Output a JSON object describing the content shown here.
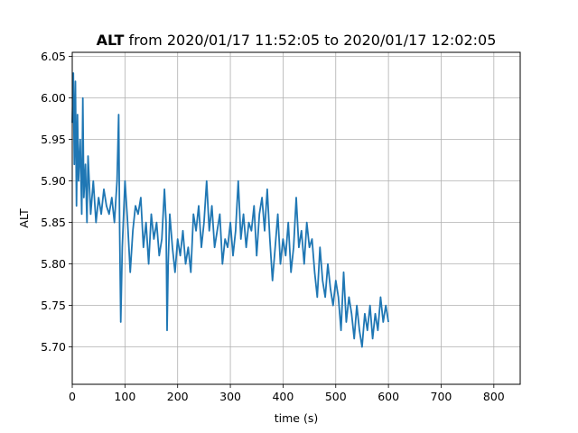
{
  "chart_data": {
    "type": "line",
    "title": {
      "bold": "ALT",
      "rest": " from 2020/01/17 11:52:05 to 2020/01/17 12:02:05"
    },
    "xlabel": "time (s)",
    "ylabel": "ALT",
    "xlim": [
      0,
      850
    ],
    "ylim": [
      5.655,
      6.055
    ],
    "xticks": [
      0,
      100,
      200,
      300,
      400,
      500,
      600,
      700,
      800
    ],
    "yticks": [
      5.7,
      5.75,
      5.8,
      5.85,
      5.9,
      5.95,
      6.0,
      6.05
    ],
    "ytick_labels": [
      "5.70",
      "5.75",
      "5.80",
      "5.85",
      "5.90",
      "5.95",
      "6.00",
      "6.05"
    ],
    "grid": true,
    "series": [
      {
        "color": "#1f77b4",
        "x": [
          0,
          2,
          4,
          6,
          8,
          10,
          12,
          15,
          18,
          20,
          22,
          25,
          28,
          30,
          35,
          40,
          45,
          50,
          55,
          60,
          65,
          70,
          75,
          80,
          85,
          88,
          90,
          92,
          95,
          100,
          105,
          110,
          115,
          120,
          125,
          130,
          135,
          140,
          145,
          150,
          155,
          160,
          165,
          170,
          175,
          178,
          180,
          182,
          185,
          190,
          195,
          200,
          205,
          210,
          215,
          220,
          225,
          230,
          235,
          240,
          245,
          250,
          255,
          260,
          265,
          270,
          275,
          280,
          285,
          290,
          295,
          300,
          305,
          310,
          315,
          320,
          325,
          330,
          335,
          340,
          345,
          350,
          355,
          360,
          365,
          370,
          375,
          380,
          385,
          390,
          395,
          400,
          405,
          410,
          415,
          420,
          425,
          430,
          435,
          440,
          445,
          450,
          455,
          460,
          465,
          470,
          475,
          480,
          485,
          490,
          495,
          500,
          505,
          510,
          515,
          520,
          525,
          530,
          535,
          540,
          545,
          550,
          555,
          560,
          565,
          570,
          575,
          580,
          585,
          590,
          595,
          600
        ],
        "y": [
          5.97,
          6.03,
          5.92,
          6.02,
          5.87,
          5.98,
          5.9,
          5.95,
          5.86,
          6.0,
          5.88,
          5.92,
          5.85,
          5.93,
          5.86,
          5.9,
          5.85,
          5.88,
          5.86,
          5.89,
          5.87,
          5.86,
          5.88,
          5.85,
          5.9,
          5.98,
          5.84,
          5.73,
          5.82,
          5.9,
          5.85,
          5.79,
          5.84,
          5.87,
          5.86,
          5.88,
          5.82,
          5.85,
          5.8,
          5.86,
          5.83,
          5.85,
          5.81,
          5.83,
          5.89,
          5.85,
          5.72,
          5.8,
          5.86,
          5.82,
          5.79,
          5.83,
          5.81,
          5.84,
          5.8,
          5.82,
          5.79,
          5.86,
          5.84,
          5.87,
          5.82,
          5.85,
          5.9,
          5.84,
          5.87,
          5.82,
          5.84,
          5.86,
          5.8,
          5.83,
          5.82,
          5.85,
          5.81,
          5.84,
          5.9,
          5.83,
          5.86,
          5.82,
          5.85,
          5.84,
          5.87,
          5.81,
          5.86,
          5.88,
          5.84,
          5.89,
          5.83,
          5.78,
          5.82,
          5.86,
          5.8,
          5.83,
          5.81,
          5.85,
          5.79,
          5.82,
          5.88,
          5.82,
          5.84,
          5.8,
          5.85,
          5.82,
          5.83,
          5.79,
          5.76,
          5.82,
          5.78,
          5.76,
          5.8,
          5.77,
          5.75,
          5.78,
          5.76,
          5.72,
          5.79,
          5.73,
          5.76,
          5.74,
          5.71,
          5.75,
          5.72,
          5.7,
          5.74,
          5.72,
          5.75,
          5.71,
          5.74,
          5.72,
          5.76,
          5.73,
          5.75,
          5.73
        ]
      }
    ]
  }
}
